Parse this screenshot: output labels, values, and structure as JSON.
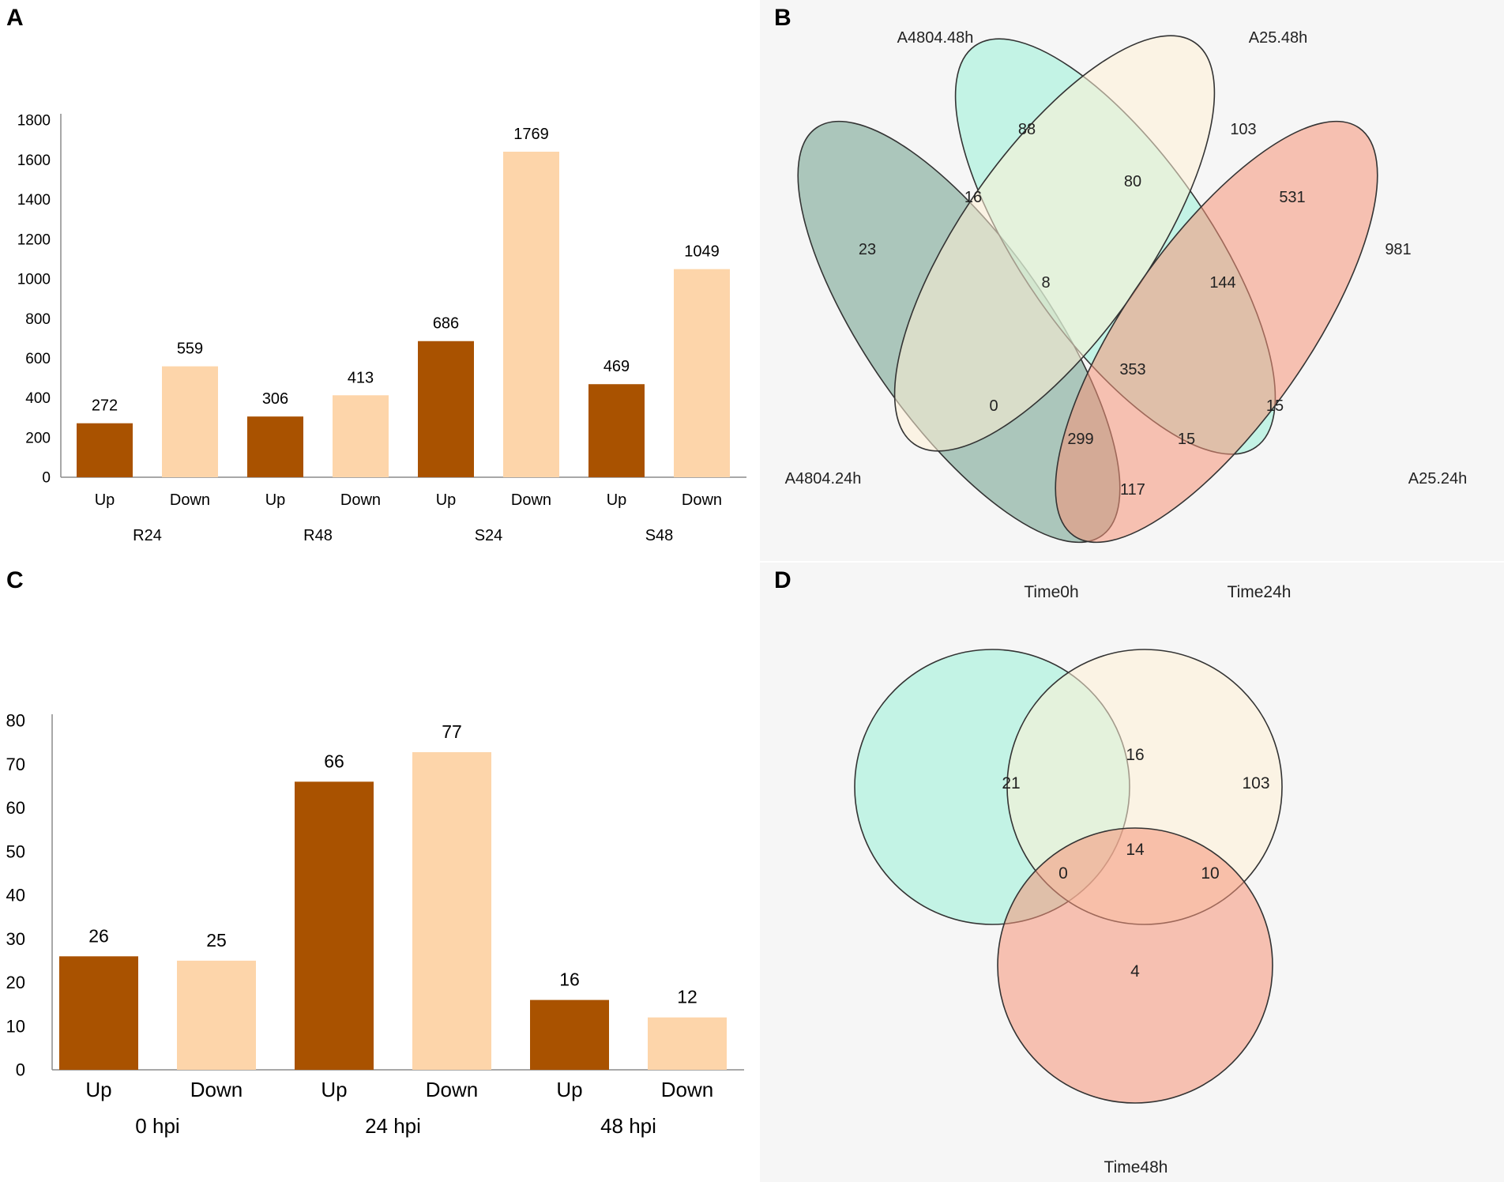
{
  "colors": {
    "up": "#a95200",
    "down": "#fdd5aa",
    "axis": "#8c8c8c"
  },
  "panel_labels": {
    "a": "A",
    "b": "B",
    "c": "C",
    "d": "D"
  },
  "chart_data": [
    {
      "type": "bar",
      "panel": "A",
      "title": "",
      "ylim": [
        0,
        1800
      ],
      "yticks": [
        0,
        200,
        400,
        600,
        800,
        1000,
        1200,
        1400,
        1600,
        1800
      ],
      "groups": [
        "R24",
        "R48",
        "S24",
        "S48"
      ],
      "bars": [
        {
          "group": "R24",
          "label": "Up",
          "value": 272,
          "display": "272",
          "kind": "up"
        },
        {
          "group": "R24",
          "label": "Down",
          "value": 559,
          "display": "559",
          "kind": "down"
        },
        {
          "group": "R48",
          "label": "Up",
          "value": 306,
          "display": "306",
          "kind": "up"
        },
        {
          "group": "R48",
          "label": "Down",
          "value": 413,
          "display": "413",
          "kind": "down"
        },
        {
          "group": "S24",
          "label": "Up",
          "value": 686,
          "display": "686",
          "kind": "up"
        },
        {
          "group": "S24",
          "label": "Down",
          "value": 1769,
          "display": "1769",
          "kind": "down"
        },
        {
          "group": "S48",
          "label": "Up",
          "value": 469,
          "display": "469",
          "kind": "up"
        },
        {
          "group": "S48",
          "label": "Down",
          "value": 1049,
          "display": "1049",
          "kind": "down"
        }
      ]
    },
    {
      "type": "venn",
      "panel": "B",
      "sets": [
        "A4804.48h",
        "A25.48h",
        "A4804.24h",
        "A25.24h"
      ],
      "regions": [
        {
          "sets": [
            "A4804.48h"
          ],
          "value": "88"
        },
        {
          "sets": [
            "A25.48h"
          ],
          "value": "103"
        },
        {
          "sets": [
            "A4804.24h"
          ],
          "value": "23"
        },
        {
          "sets": [
            "A25.24h"
          ],
          "value": "981"
        },
        {
          "sets": [
            "A4804.48h",
            "A4804.24h"
          ],
          "value": "16"
        },
        {
          "sets": [
            "A4804.48h",
            "A25.48h"
          ],
          "value": "80"
        },
        {
          "sets": [
            "A25.48h",
            "A25.24h"
          ],
          "value": "531"
        },
        {
          "sets": [
            "A4804.48h",
            "A25.48h",
            "A4804.24h"
          ],
          "value": "8"
        },
        {
          "sets": [
            "A4804.48h",
            "A25.48h",
            "A25.24h"
          ],
          "value": "144"
        },
        {
          "sets": [
            "A4804.48h",
            "A25.48h",
            "A4804.24h",
            "A25.24h"
          ],
          "value": "353"
        },
        {
          "sets": [
            "A25.48h",
            "A4804.24h"
          ],
          "value": "0"
        },
        {
          "sets": [
            "A4804.48h",
            "A25.24h"
          ],
          "value": "15"
        },
        {
          "sets": [
            "A25.48h",
            "A4804.24h",
            "A25.24h"
          ],
          "value": "299"
        },
        {
          "sets": [
            "A4804.48h",
            "A4804.24h",
            "A25.24h"
          ],
          "value": "15"
        },
        {
          "sets": [
            "A4804.24h",
            "A25.24h"
          ],
          "value": "117"
        }
      ]
    },
    {
      "type": "bar",
      "panel": "C",
      "title": "",
      "ylim": [
        0,
        80
      ],
      "yticks": [
        0,
        10,
        20,
        30,
        40,
        50,
        60,
        70,
        80
      ],
      "groups": [
        "0 hpi",
        "24 hpi",
        "48 hpi"
      ],
      "bars": [
        {
          "group": "0 hpi",
          "label": "Up",
          "value": 26,
          "display": "26",
          "kind": "up"
        },
        {
          "group": "0 hpi",
          "label": "Down",
          "value": 25,
          "display": "25",
          "kind": "down"
        },
        {
          "group": "24 hpi",
          "label": "Up",
          "value": 66,
          "display": "66",
          "kind": "up"
        },
        {
          "group": "24 hpi",
          "label": "Down",
          "value": 77,
          "display": "77",
          "kind": "down"
        },
        {
          "group": "48 hpi",
          "label": "Up",
          "value": 16,
          "display": "16",
          "kind": "up"
        },
        {
          "group": "48 hpi",
          "label": "Down",
          "value": 12,
          "display": "12",
          "kind": "down"
        }
      ]
    },
    {
      "type": "venn",
      "panel": "D",
      "sets": [
        "Time0h",
        "Time24h",
        "Time48h"
      ],
      "regions": [
        {
          "sets": [
            "Time0h"
          ],
          "value": "21"
        },
        {
          "sets": [
            "Time24h"
          ],
          "value": "103"
        },
        {
          "sets": [
            "Time48h"
          ],
          "value": "4"
        },
        {
          "sets": [
            "Time0h",
            "Time24h"
          ],
          "value": "16"
        },
        {
          "sets": [
            "Time0h",
            "Time48h"
          ],
          "value": "0"
        },
        {
          "sets": [
            "Time24h",
            "Time48h"
          ],
          "value": "10"
        },
        {
          "sets": [
            "Time0h",
            "Time24h",
            "Time48h"
          ],
          "value": "14"
        }
      ]
    }
  ]
}
